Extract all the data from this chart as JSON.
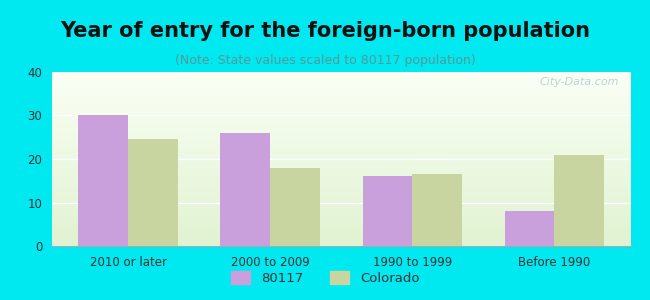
{
  "title": "Year of entry for the foreign-born population",
  "subtitle": "(Note: State values scaled to 80117 population)",
  "categories": [
    "2010 or later",
    "2000 to 2009",
    "1990 to 1999",
    "Before 1990"
  ],
  "values_80117": [
    30,
    26,
    16,
    8
  ],
  "values_colorado": [
    24.5,
    18,
    16.5,
    21
  ],
  "bar_color_80117": "#c9a0dc",
  "bar_color_colorado": "#c8d5a0",
  "background_outer": "#00e8f0",
  "ylim": [
    0,
    40
  ],
  "yticks": [
    0,
    10,
    20,
    30,
    40
  ],
  "bar_width": 0.35,
  "legend_label_80117": "80117",
  "legend_label_colorado": "Colorado",
  "title_fontsize": 15,
  "subtitle_fontsize": 9,
  "watermark": "City-Data.com"
}
